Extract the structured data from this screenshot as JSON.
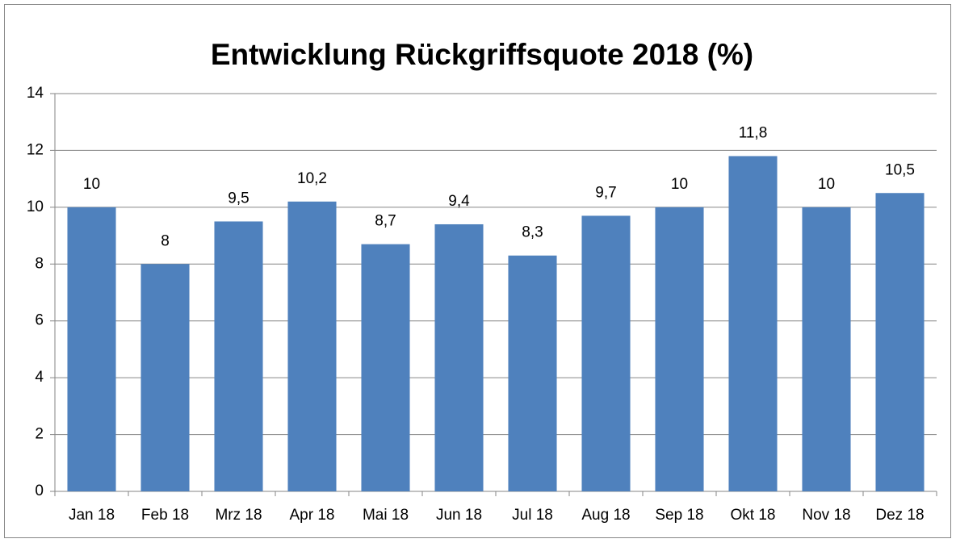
{
  "chart_data": {
    "type": "bar",
    "title": "Entwicklung Rückgriffsquote 2018 (%)",
    "categories": [
      "Jan 18",
      "Feb 18",
      "Mrz 18",
      "Apr 18",
      "Mai 18",
      "Jun 18",
      "Jul 18",
      "Aug 18",
      "Sep 18",
      "Okt 18",
      "Nov 18",
      "Dez 18"
    ],
    "values": [
      10,
      8,
      9.5,
      10.2,
      8.7,
      9.4,
      8.3,
      9.7,
      10,
      11.8,
      10,
      10.5
    ],
    "value_labels": [
      "10",
      "8",
      "9,5",
      "10,2",
      "8,7",
      "9,4",
      "8,3",
      "9,7",
      "10",
      "11,8",
      "10",
      "10,5"
    ],
    "color": "#4f81bd",
    "ylim": [
      0,
      14
    ],
    "yticks": [
      0,
      2,
      4,
      6,
      8,
      10,
      12,
      14
    ],
    "grid": true
  }
}
